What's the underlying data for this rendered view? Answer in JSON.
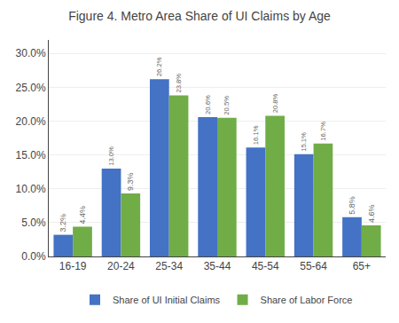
{
  "chart_data": {
    "type": "bar",
    "title": "Figure 4. Metro Area Share of UI Claims by Age",
    "categories": [
      "16-19",
      "20-24",
      "25-34",
      "35-44",
      "45-54",
      "55-64",
      "65+"
    ],
    "series": [
      {
        "name": "Share of UI Initial Claims",
        "color": "#4472C4",
        "values": [
          3.2,
          13.0,
          26.2,
          20.6,
          16.1,
          15.1,
          5.8
        ],
        "value_labels": [
          "3.2%",
          "13.0%",
          "26.2%",
          "20.6%",
          "16.1%",
          "15.1%",
          "5.8%"
        ]
      },
      {
        "name": "Share of Labor Force",
        "color": "#70AD47",
        "values": [
          4.4,
          9.3,
          23.8,
          20.5,
          20.8,
          16.7,
          4.6
        ],
        "value_labels": [
          "4.4%",
          "9.3%",
          "23.8%",
          "20.5%",
          "20.8%",
          "16.7%",
          "4.6%"
        ]
      }
    ],
    "ylim": [
      0,
      32
    ],
    "yticks": [
      {
        "value": 0,
        "label": "0.0%"
      },
      {
        "value": 5,
        "label": "5.0%"
      },
      {
        "value": 10,
        "label": "10.0%"
      },
      {
        "value": 15,
        "label": "15.0%"
      },
      {
        "value": 20,
        "label": "20.0%"
      },
      {
        "value": 25,
        "label": "25.0%"
      },
      {
        "value": 30,
        "label": "30.0%"
      }
    ],
    "grid": true,
    "legend": "bottom",
    "data_labels": true
  }
}
